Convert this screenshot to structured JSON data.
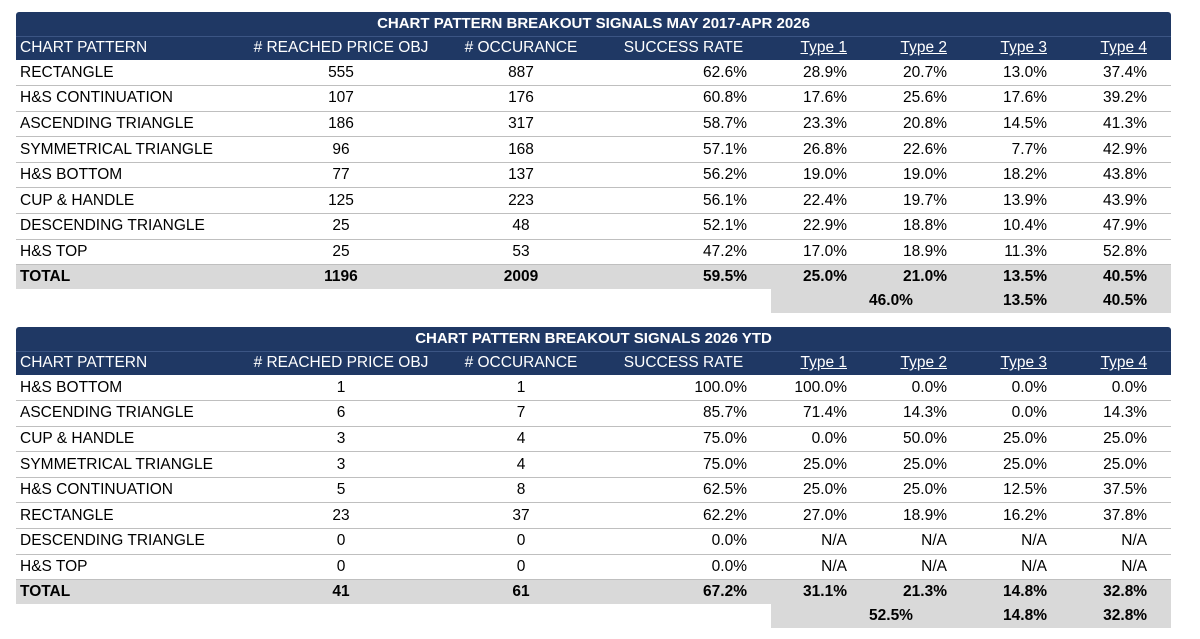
{
  "tables": [
    {
      "title": "CHART PATTERN BREAKOUT SIGNALS MAY 2017-APR 2026",
      "headers": [
        "CHART PATTERN",
        "# REACHED PRICE OBJ",
        "# OCCURANCE",
        "SUCCESS RATE",
        "Type 1",
        "Type 2",
        "Type 3",
        "Type 4"
      ],
      "rows": [
        [
          "RECTANGLE",
          "555",
          "887",
          "62.6%",
          "28.9%",
          "20.7%",
          "13.0%",
          "37.4%"
        ],
        [
          "H&S CONTINUATION",
          "107",
          "176",
          "60.8%",
          "17.6%",
          "25.6%",
          "17.6%",
          "39.2%"
        ],
        [
          "ASCENDING TRIANGLE",
          "186",
          "317",
          "58.7%",
          "23.3%",
          "20.8%",
          "14.5%",
          "41.3%"
        ],
        [
          "SYMMETRICAL TRIANGLE",
          "96",
          "168",
          "57.1%",
          "26.8%",
          "22.6%",
          "7.7%",
          "42.9%"
        ],
        [
          "H&S BOTTOM",
          "77",
          "137",
          "56.2%",
          "19.0%",
          "19.0%",
          "18.2%",
          "43.8%"
        ],
        [
          "CUP & HANDLE",
          "125",
          "223",
          "56.1%",
          "22.4%",
          "19.7%",
          "13.9%",
          "43.9%"
        ],
        [
          "DESCENDING TRIANGLE",
          "25",
          "48",
          "52.1%",
          "22.9%",
          "18.8%",
          "10.4%",
          "47.9%"
        ],
        [
          "H&S TOP",
          "25",
          "53",
          "47.2%",
          "17.0%",
          "18.9%",
          "11.3%",
          "52.8%"
        ]
      ],
      "total": [
        "TOTAL",
        "1196",
        "2009",
        "59.5%",
        "25.0%",
        "21.0%",
        "13.5%",
        "40.5%"
      ],
      "summary": {
        "type12": "46.0%",
        "type3": "13.5%",
        "type4": "40.5%"
      }
    },
    {
      "title": "CHART PATTERN BREAKOUT SIGNALS 2026 YTD",
      "headers": [
        "CHART PATTERN",
        "# REACHED PRICE OBJ",
        "# OCCURANCE",
        "SUCCESS RATE",
        "Type 1",
        "Type 2",
        "Type 3",
        "Type 4"
      ],
      "rows": [
        [
          "H&S BOTTOM",
          "1",
          "1",
          "100.0%",
          "100.0%",
          "0.0%",
          "0.0%",
          "0.0%"
        ],
        [
          "ASCENDING TRIANGLE",
          "6",
          "7",
          "85.7%",
          "71.4%",
          "14.3%",
          "0.0%",
          "14.3%"
        ],
        [
          "CUP & HANDLE",
          "3",
          "4",
          "75.0%",
          "0.0%",
          "50.0%",
          "25.0%",
          "25.0%"
        ],
        [
          "SYMMETRICAL TRIANGLE",
          "3",
          "4",
          "75.0%",
          "25.0%",
          "25.0%",
          "25.0%",
          "25.0%"
        ],
        [
          "H&S CONTINUATION",
          "5",
          "8",
          "62.5%",
          "25.0%",
          "25.0%",
          "12.5%",
          "37.5%"
        ],
        [
          "RECTANGLE",
          "23",
          "37",
          "62.2%",
          "27.0%",
          "18.9%",
          "16.2%",
          "37.8%"
        ],
        [
          "DESCENDING TRIANGLE",
          "0",
          "0",
          "0.0%",
          "N/A",
          "N/A",
          "N/A",
          "N/A"
        ],
        [
          "H&S TOP",
          "0",
          "0",
          "0.0%",
          "N/A",
          "N/A",
          "N/A",
          "N/A"
        ]
      ],
      "total": [
        "TOTAL",
        "41",
        "61",
        "67.2%",
        "31.1%",
        "21.3%",
        "14.8%",
        "32.8%"
      ],
      "summary": {
        "type12": "52.5%",
        "type3": "14.8%",
        "type4": "32.8%"
      }
    }
  ]
}
